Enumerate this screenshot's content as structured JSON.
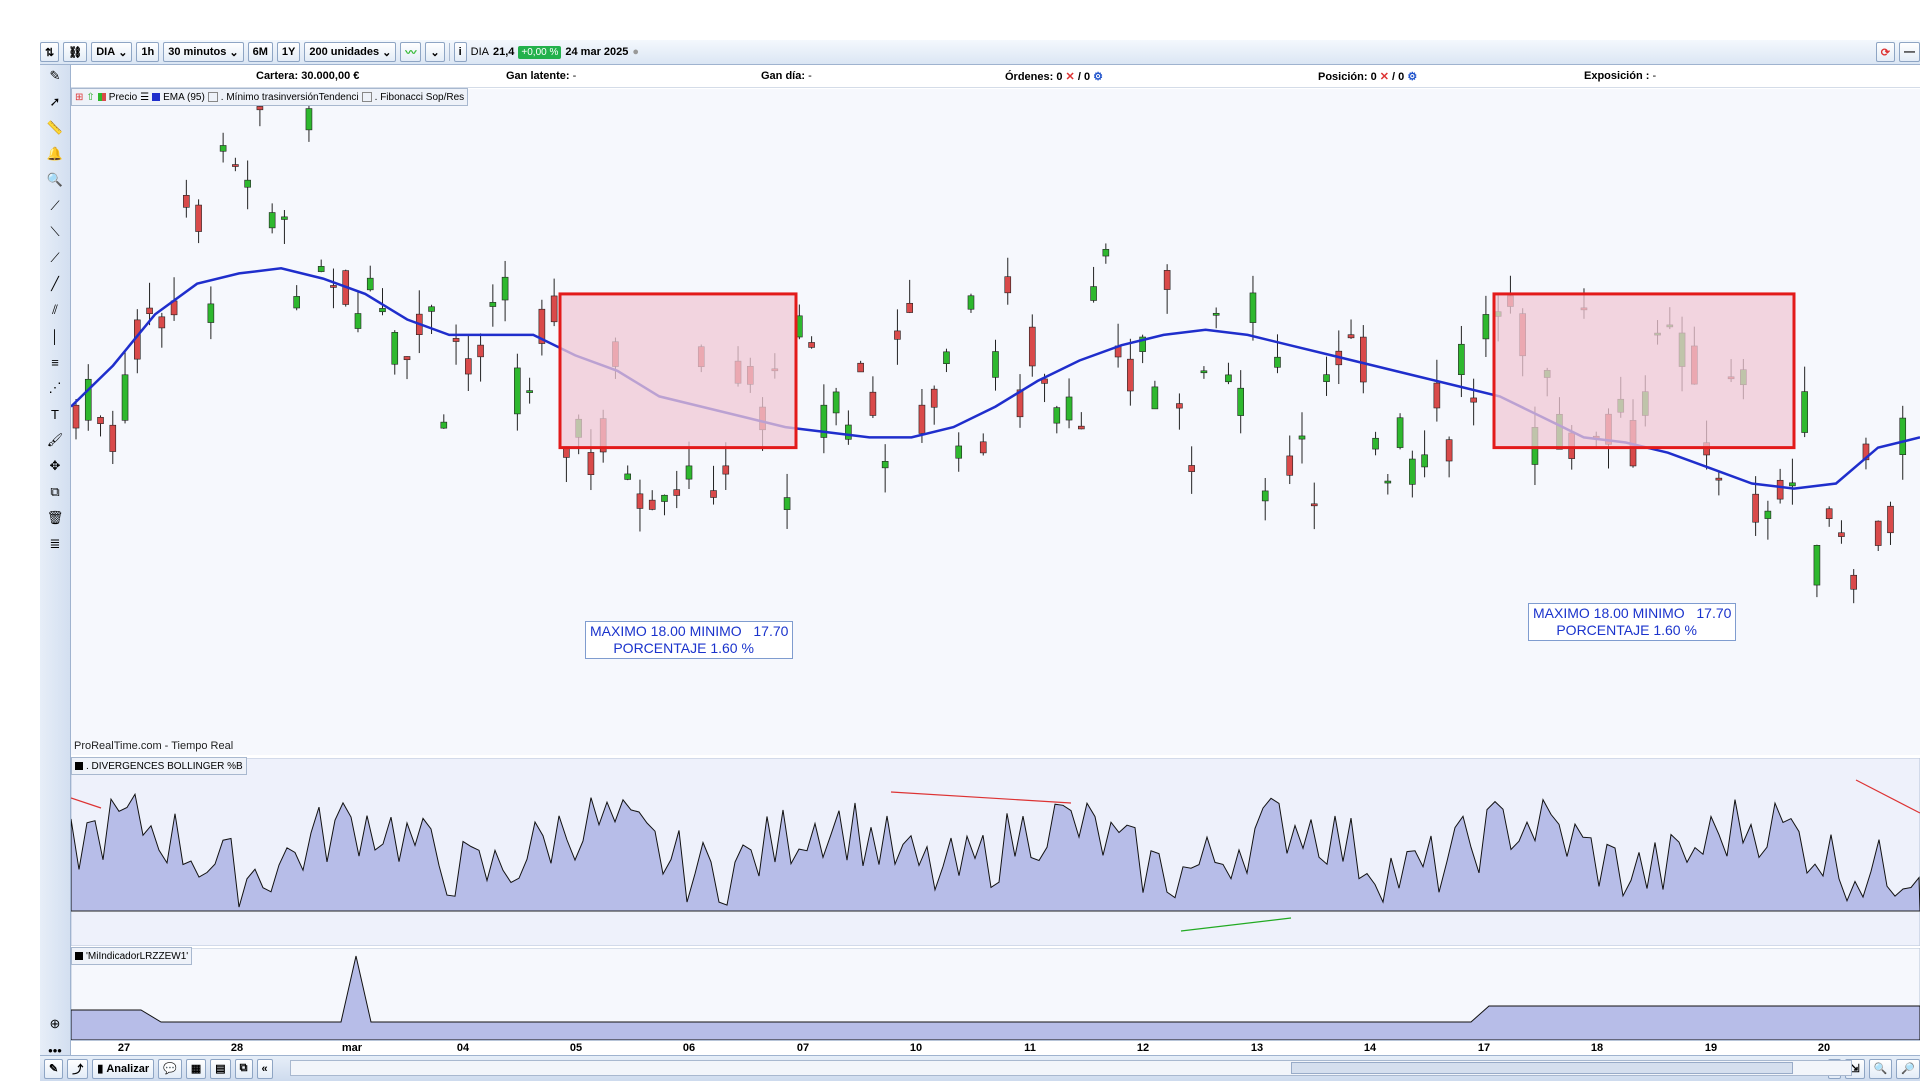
{
  "toolbar": {
    "symbol": "DIA",
    "interval_short": "1h",
    "interval": "30 minutos",
    "range_6m": "6M",
    "range_1y": "1Y",
    "units": "200 unidades",
    "quote_symbol": "DIA",
    "quote_price": "21,4",
    "quote_change": "+0,00 %",
    "quote_date": "24 mar 2025"
  },
  "infobar": {
    "cartera_label": "Cartera:",
    "cartera_value": "30.000,00 €",
    "gan_latente_label": "Gan latente:",
    "gan_latente_value": "-",
    "gan_dia_label": "Gan día:",
    "gan_dia_value": "-",
    "ordenes_label": "Órdenes:",
    "ordenes_value": "0",
    "ordenes_total": "/ 0",
    "posicion_label": "Posición:",
    "posicion_value": "0",
    "posicion_total": "/ 0",
    "exposicion_label": "Exposición :",
    "exposicion_value": "-"
  },
  "legend_price": {
    "price_label": "Precio",
    "ema_label": "EMA (95)",
    "min_label": ". Mínimo trasinversiónTendenci",
    "fib_label": ". Fibonacci Sop/Res"
  },
  "source_label": "ProRealTime.com - Tiempo Real",
  "indicator1": {
    "label": ". DIVERGENCES BOLLINGER %B"
  },
  "indicator2": {
    "label": "'MiIndicadorLRZZEW1'"
  },
  "annotations": [
    {
      "line1": "MAXIMO 18.00 MINIMO   17.70",
      "line2": "PORCENTAJE 1.60 %"
    },
    {
      "line1": "MAXIMO 18.00 MINIMO   17.70",
      "line2": "PORCENTAJE 1.60 %"
    }
  ],
  "x_axis_labels": [
    "27",
    "28",
    "mar",
    "04",
    "05",
    "06",
    "07",
    "10",
    "11",
    "12",
    "13",
    "14",
    "17",
    "18",
    "19",
    "20"
  ],
  "bottombar": {
    "analyze_label": "Analizar"
  },
  "colors": {
    "up_candle": "#2eb82e",
    "down_candle": "#d94a4a",
    "ema": "#1f2ecc",
    "zone_fill": "#f0c8d4",
    "zone_border": "#e31a1a",
    "indicator_fill": "#b7bde8"
  },
  "chart_data": {
    "type": "candlestick",
    "series": [
      {
        "name": "EMA (95)",
        "values": [
          17.78,
          17.86,
          17.96,
          18.02,
          18.04,
          18.05,
          18.03,
          18.0,
          17.95,
          17.92,
          17.92,
          17.92,
          17.88,
          17.85,
          17.8,
          17.78,
          17.76,
          17.74,
          17.73,
          17.72,
          17.72,
          17.74,
          17.78,
          17.83,
          17.87,
          17.9,
          17.92,
          17.93,
          17.92,
          17.9,
          17.88,
          17.86,
          17.84,
          17.82,
          17.8,
          17.76,
          17.72,
          17.71,
          17.69,
          17.66,
          17.63,
          17.62,
          17.63,
          17.7,
          17.72
        ]
      }
    ],
    "price_range": [
      17.1,
      18.4
    ],
    "zones": [
      {
        "max": 18.0,
        "min": 17.7,
        "percent": 1.6
      },
      {
        "max": 18.0,
        "min": 17.7,
        "percent": 1.6
      }
    ]
  }
}
